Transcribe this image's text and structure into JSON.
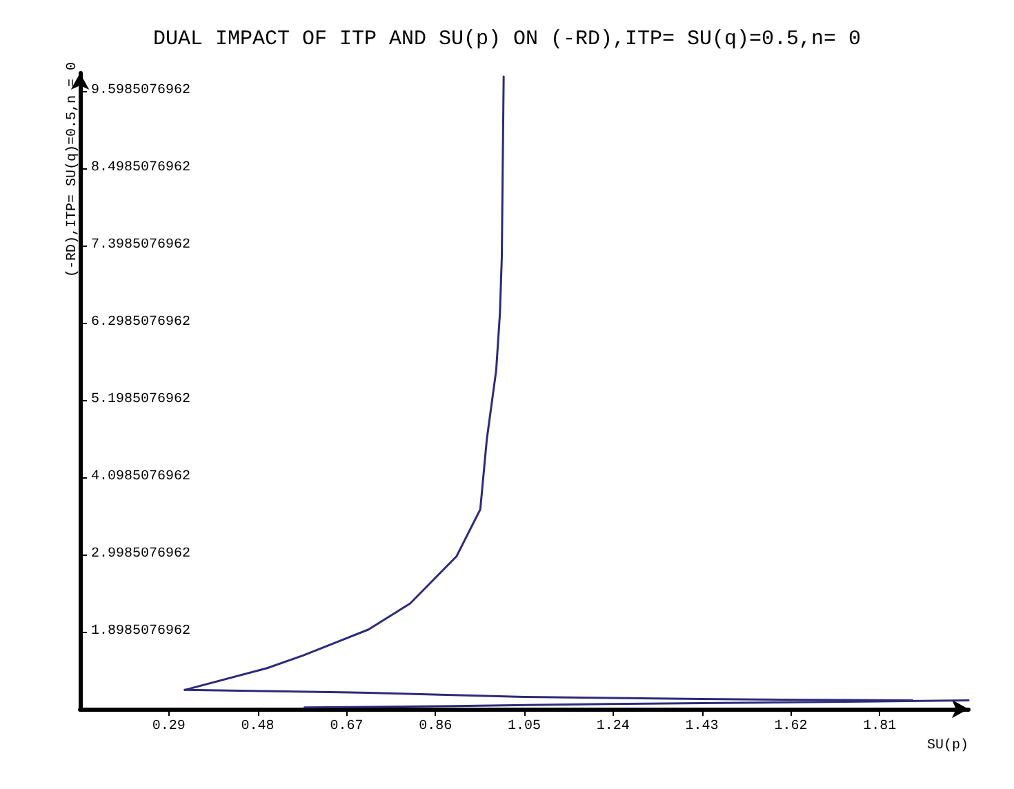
{
  "chart_data": {
    "type": "line",
    "title": "DUAL IMPACT OF ITP AND SU(p) ON (-RD),ITP= SU(q)=0.5,n= 0",
    "xlabel": "SU(p)",
    "ylabel": "(-RD),ITP= SU(q)=0.5,n = 0",
    "xlim": [
      0.1,
      2.0
    ],
    "ylim": [
      0.7985076962,
      9.85
    ],
    "xticks": [
      0.29,
      0.48,
      0.67,
      0.86,
      1.05,
      1.24,
      1.43,
      1.62,
      1.81
    ],
    "yticks": [
      1.8985076962,
      2.9985076962,
      4.0985076962,
      5.1985076962,
      6.2985076962,
      7.3985076962,
      8.4985076962,
      9.5985076962
    ],
    "grid": false,
    "marker": "none",
    "line_style": "solid",
    "series": [
      {
        "color": "#2b2b7a",
        "x": [
          0.324,
          0.5,
          0.577,
          0.717,
          0.806,
          0.905,
          0.956,
          0.97,
          0.99,
          0.998,
          1.002,
          1.006
        ],
        "values": [
          1.07,
          1.38,
          1.56,
          1.93,
          2.3,
          2.97,
          3.64,
          4.64,
          5.62,
          6.43,
          7.23,
          9.8
        ]
      },
      {
        "color": "#2b2b7a",
        "x": [
          0.324,
          0.717,
          1.05,
          1.3,
          1.6,
          1.88
        ],
        "values": [
          1.07,
          1.03,
          0.97,
          0.95,
          0.93,
          0.92
        ]
      },
      {
        "color": "#2b2b7a",
        "x": [
          0.58,
          0.9,
          1.23,
          1.55,
          2.0
        ],
        "values": [
          0.82,
          0.84,
          0.87,
          0.89,
          0.92
        ]
      }
    ]
  }
}
